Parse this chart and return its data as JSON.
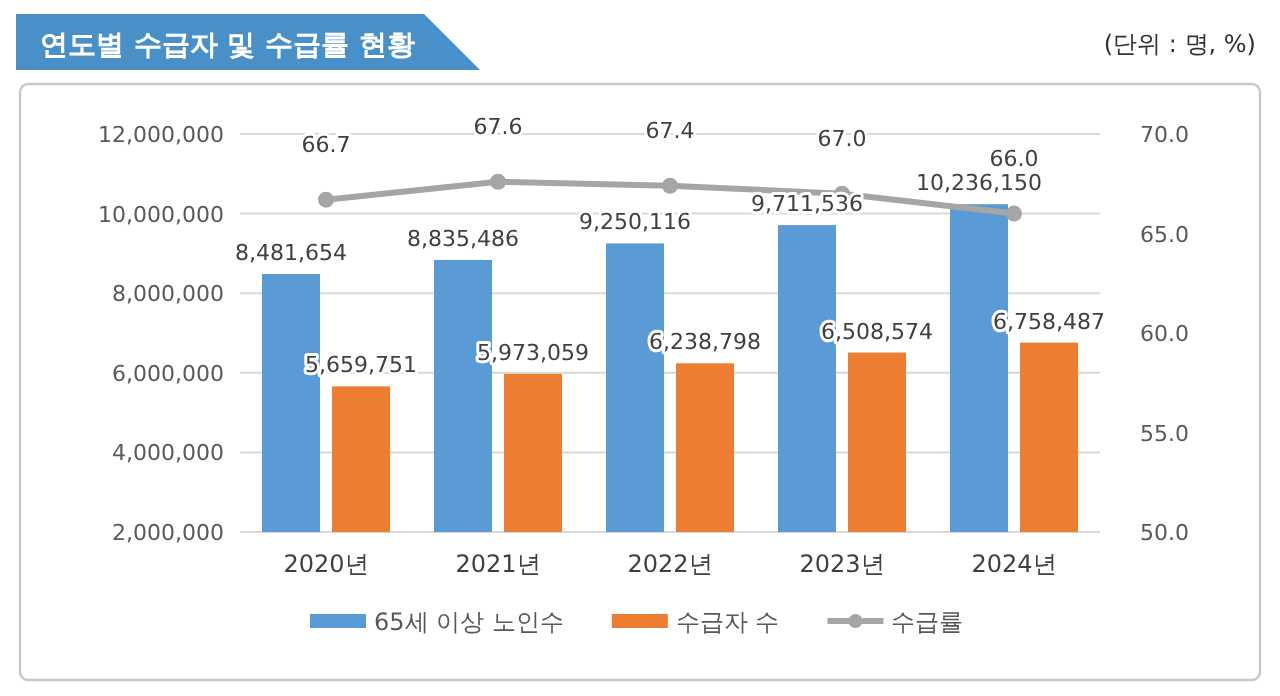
{
  "chart_data": {
    "type": "bar",
    "title": "연도별 수급자 및 수급률 현황",
    "annotations": [
      "(단위 : 명, %)"
    ],
    "categories": [
      "2020년",
      "2021년",
      "2022년",
      "2023년",
      "2024년"
    ],
    "series": [
      {
        "name": "65세 이상 노인수",
        "color": "#5b9bd5",
        "values": [
          8481654,
          8835486,
          9250116,
          9711536,
          10236150
        ],
        "value_labels": [
          "8,481,654",
          "8,835,486",
          "9,250,116",
          "9,711,536",
          "10,236,150"
        ]
      },
      {
        "name": "수급자 수",
        "color": "#ed7d31",
        "values": [
          5659751,
          5973059,
          6238798,
          6508574,
          6758487
        ],
        "value_labels": [
          "5,659,751",
          "5,973,059",
          "6,238,798",
          "6,508,574",
          "6,758,487"
        ]
      },
      {
        "name": "수급률",
        "type": "line",
        "axis": "y2",
        "color": "#a5a5a5",
        "marker": "circle",
        "values": [
          66.7,
          67.6,
          67.4,
          67.0,
          66.0
        ],
        "value_labels": [
          "66.7",
          "67.6",
          "67.4",
          "67.0",
          "66.0"
        ]
      }
    ],
    "ylim": [
      2000000,
      12000000
    ],
    "yticks": [
      {
        "value": 2000000,
        "label": "2,000,000"
      },
      {
        "value": 4000000,
        "label": "4,000,000"
      },
      {
        "value": 6000000,
        "label": "6,000,000"
      },
      {
        "value": 8000000,
        "label": "8,000,000"
      },
      {
        "value": 10000000,
        "label": "10,000,000"
      },
      {
        "value": 12000000,
        "label": "12,000,000"
      }
    ],
    "y2lim": [
      50,
      70
    ],
    "y2ticks": [
      {
        "value": 50,
        "label": "50.0"
      },
      {
        "value": 55,
        "label": "55.0"
      },
      {
        "value": 60,
        "label": "60.0"
      },
      {
        "value": 65,
        "label": "65.0"
      },
      {
        "value": 70,
        "label": "70.0"
      }
    ],
    "grid": "y",
    "legend": "bottom"
  }
}
